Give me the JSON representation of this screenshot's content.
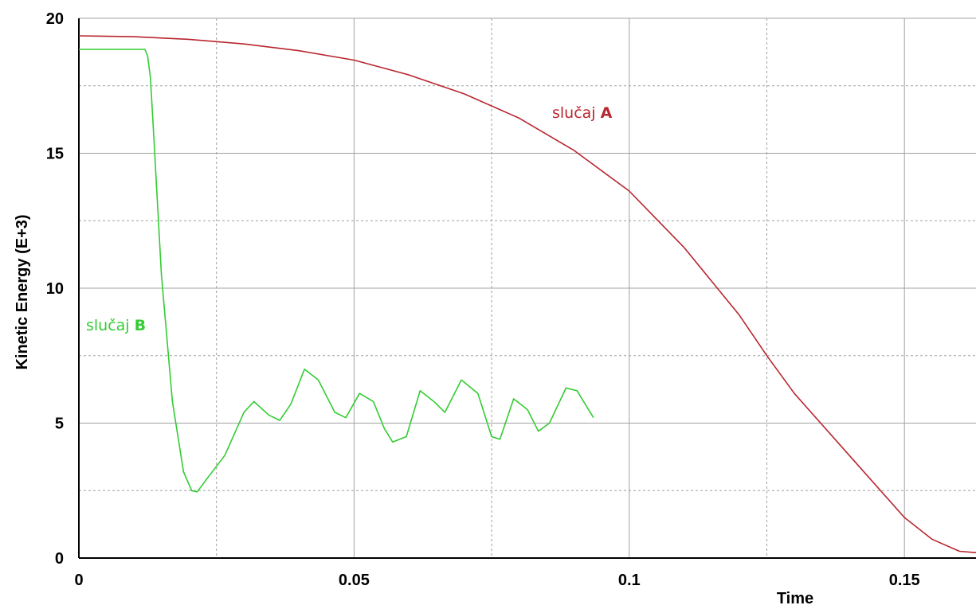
{
  "chart_data": {
    "type": "line",
    "xlabel": "Time",
    "ylabel": "Kinetic Energy (E+3)",
    "xlim": [
      0,
      0.163
    ],
    "ylim": [
      0,
      20
    ],
    "x_ticks": [
      "0",
      "0.05",
      "0.1",
      "0.15"
    ],
    "y_ticks": [
      "0",
      "5",
      "10",
      "15",
      "20"
    ],
    "grid": true,
    "series": [
      {
        "name_prefix": "slučaj ",
        "name_letter": "A",
        "color": "#b8262f",
        "x": [
          0,
          0.01,
          0.02,
          0.03,
          0.04,
          0.05,
          0.06,
          0.07,
          0.08,
          0.09,
          0.1,
          0.11,
          0.12,
          0.125,
          0.13,
          0.14,
          0.15,
          0.155,
          0.16,
          0.163
        ],
        "y": [
          19.35,
          19.32,
          19.22,
          19.05,
          18.8,
          18.45,
          17.9,
          17.2,
          16.3,
          15.1,
          13.6,
          11.5,
          9.0,
          7.5,
          6.1,
          3.8,
          1.5,
          0.7,
          0.25,
          0.2
        ]
      },
      {
        "name_prefix": "slučaj ",
        "name_letter": "B",
        "color": "#33cc33",
        "x": [
          0,
          0.012,
          0.0125,
          0.013,
          0.0135,
          0.015,
          0.017,
          0.019,
          0.0205,
          0.0215,
          0.0235,
          0.0265,
          0.03,
          0.0318,
          0.0345,
          0.0365,
          0.0385,
          0.041,
          0.0435,
          0.0465,
          0.0485,
          0.051,
          0.0535,
          0.0555,
          0.057,
          0.0595,
          0.062,
          0.0645,
          0.0665,
          0.0695,
          0.0725,
          0.075,
          0.0765,
          0.079,
          0.0815,
          0.0835,
          0.0855,
          0.0885,
          0.0905,
          0.0935
        ],
        "y": [
          18.85,
          18.85,
          18.6,
          17.8,
          16.0,
          10.5,
          5.8,
          3.2,
          2.5,
          2.45,
          3.0,
          3.8,
          5.4,
          5.8,
          5.3,
          5.1,
          5.7,
          7.0,
          6.6,
          5.4,
          5.2,
          6.1,
          5.8,
          4.8,
          4.3,
          4.5,
          6.2,
          5.8,
          5.4,
          6.6,
          6.1,
          4.5,
          4.4,
          5.9,
          5.5,
          4.7,
          5.0,
          6.3,
          6.2,
          5.2
        ]
      }
    ]
  }
}
